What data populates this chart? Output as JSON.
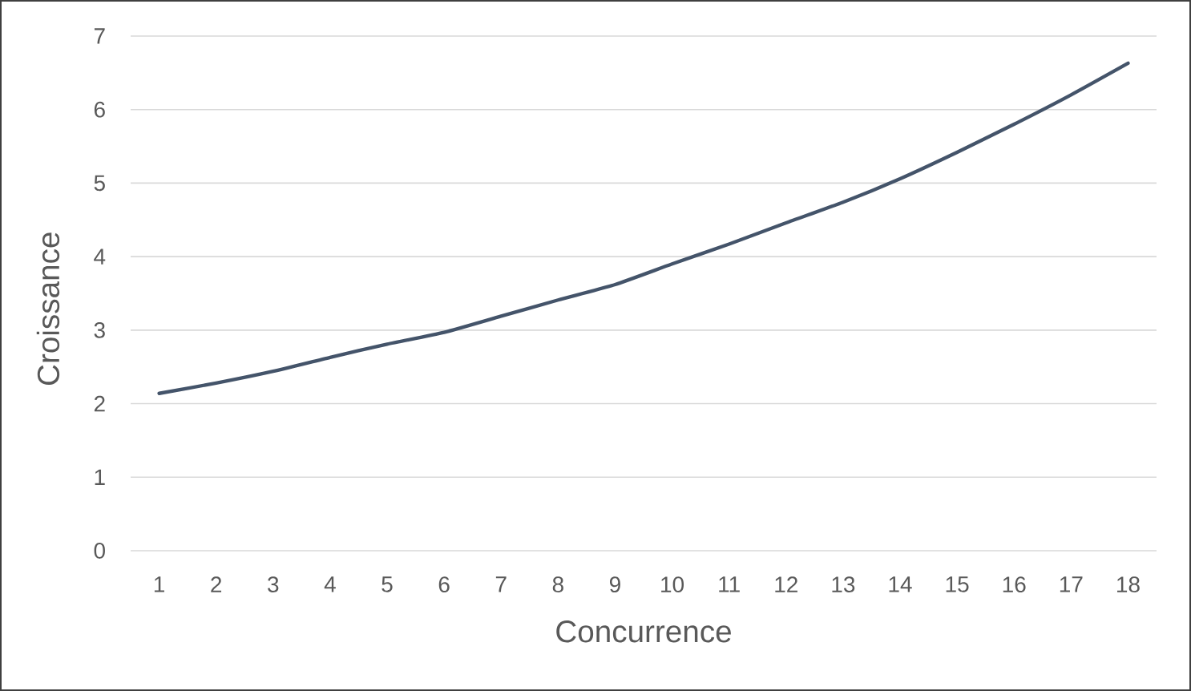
{
  "chart_data": {
    "type": "line",
    "xlabel": "Concurrence",
    "ylabel": "Croissance",
    "categories": [
      "1",
      "2",
      "3",
      "4",
      "5",
      "6",
      "7",
      "8",
      "9",
      "10",
      "11",
      "12",
      "13",
      "14",
      "15",
      "16",
      "17",
      "18"
    ],
    "series": [
      {
        "color": "#44546a",
        "values": [
          2.14,
          2.28,
          2.44,
          2.63,
          2.81,
          2.97,
          3.19,
          3.41,
          3.62,
          3.9,
          4.17,
          4.46,
          4.74,
          5.06,
          5.42,
          5.8,
          6.2,
          6.63
        ]
      }
    ],
    "ylim": [
      0,
      7
    ],
    "yticks": [
      0,
      1,
      2,
      3,
      4,
      5,
      6,
      7
    ],
    "grid": "y",
    "line_style": "solid"
  }
}
